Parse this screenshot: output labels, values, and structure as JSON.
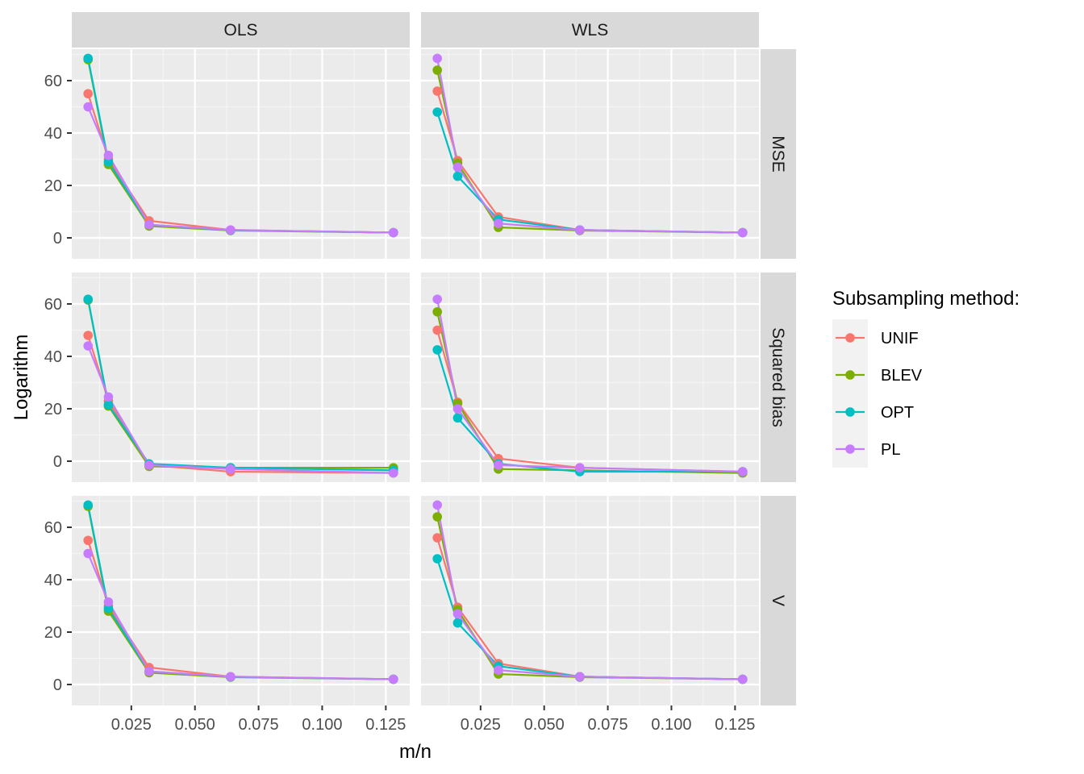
{
  "chart_data": {
    "type": "line",
    "x": [
      0.008,
      0.016,
      0.032,
      0.064,
      0.128
    ],
    "xlabel": "m/n",
    "ylabel": "Logarithm",
    "x_ticks": [
      "0.025",
      "0.050",
      "0.075",
      "0.100",
      "0.125"
    ],
    "x_tick_values": [
      0.025,
      0.05,
      0.075,
      0.1,
      0.125
    ],
    "xlim": [
      0.0016,
      0.1344
    ],
    "y_ticks": [
      0,
      20,
      40,
      60
    ],
    "y_tick_labels": [
      "0",
      "20",
      "40",
      "60"
    ],
    "ylim": [
      -8,
      72
    ],
    "columns": [
      "OLS",
      "WLS"
    ],
    "rows": [
      "MSE",
      "Squared bias",
      "V"
    ],
    "legend": {
      "title": "Subsampling method:",
      "position": "right",
      "entries": [
        "UNIF",
        "BLEV",
        "OPT",
        "PL"
      ]
    },
    "colors": {
      "UNIF": "#F8766D",
      "BLEV": "#7CAE00",
      "OPT": "#00BFC4",
      "PL": "#C77CFF",
      "panel_bg": "#EBEBEB",
      "grid": "#FFFFFF",
      "strip_bg": "#D9D9D9"
    },
    "grid": true,
    "panels": [
      {
        "row": "MSE",
        "col": "OLS",
        "series": [
          {
            "name": "UNIF",
            "values": [
              55,
              30,
              6.5,
              3.0,
              2.0
            ]
          },
          {
            "name": "BLEV",
            "values": [
              68,
              28,
              4.5,
              2.8,
              2.0
            ]
          },
          {
            "name": "OPT",
            "values": [
              68.5,
              29,
              5.0,
              2.9,
              2.0
            ]
          },
          {
            "name": "PL",
            "values": [
              50,
              31.5,
              5.0,
              3.0,
              2.0
            ]
          }
        ]
      },
      {
        "row": "MSE",
        "col": "WLS",
        "series": [
          {
            "name": "UNIF",
            "values": [
              56,
              29.5,
              8.0,
              3.0,
              2.0
            ]
          },
          {
            "name": "BLEV",
            "values": [
              64,
              28.5,
              4.0,
              2.8,
              2.0
            ]
          },
          {
            "name": "OPT",
            "values": [
              48,
              23.5,
              7.0,
              3.0,
              2.0
            ]
          },
          {
            "name": "PL",
            "values": [
              68.5,
              27,
              5.5,
              3.0,
              2.0
            ]
          }
        ]
      },
      {
        "row": "Squared bias",
        "col": "OLS",
        "series": [
          {
            "name": "UNIF",
            "values": [
              48,
              23,
              -1.5,
              -4.0,
              -4.5
            ]
          },
          {
            "name": "BLEV",
            "values": [
              61.5,
              21,
              -2.0,
              -2.5,
              -2.5
            ]
          },
          {
            "name": "OPT",
            "values": [
              61.8,
              21.5,
              -1.0,
              -2.5,
              -3.5
            ]
          },
          {
            "name": "PL",
            "values": [
              44,
              24.5,
              -1.5,
              -3.0,
              -4.5
            ]
          }
        ]
      },
      {
        "row": "Squared bias",
        "col": "WLS",
        "series": [
          {
            "name": "UNIF",
            "values": [
              50,
              22.5,
              1.0,
              -2.5,
              -4.0
            ]
          },
          {
            "name": "BLEV",
            "values": [
              57,
              22,
              -3.0,
              -3.5,
              -4.5
            ]
          },
          {
            "name": "OPT",
            "values": [
              42.5,
              16.5,
              -1.0,
              -4.0,
              -4.0
            ]
          },
          {
            "name": "PL",
            "values": [
              61.8,
              20,
              -1.5,
              -2.5,
              -4.0
            ]
          }
        ]
      },
      {
        "row": "V",
        "col": "OLS",
        "series": [
          {
            "name": "UNIF",
            "values": [
              55,
              30,
              6.5,
              3.0,
              2.0
            ]
          },
          {
            "name": "BLEV",
            "values": [
              68,
              28,
              4.5,
              2.8,
              2.0
            ]
          },
          {
            "name": "OPT",
            "values": [
              68.5,
              29,
              5.0,
              2.9,
              2.0
            ]
          },
          {
            "name": "PL",
            "values": [
              50,
              31.5,
              5.0,
              3.0,
              2.0
            ]
          }
        ]
      },
      {
        "row": "V",
        "col": "WLS",
        "series": [
          {
            "name": "UNIF",
            "values": [
              56,
              29.5,
              8.0,
              3.0,
              2.0
            ]
          },
          {
            "name": "BLEV",
            "values": [
              64,
              28.5,
              4.0,
              2.8,
              2.0
            ]
          },
          {
            "name": "OPT",
            "values": [
              48,
              23.5,
              7.0,
              3.0,
              2.0
            ]
          },
          {
            "name": "PL",
            "values": [
              68.5,
              27,
              5.5,
              3.0,
              2.0
            ]
          }
        ]
      }
    ]
  }
}
